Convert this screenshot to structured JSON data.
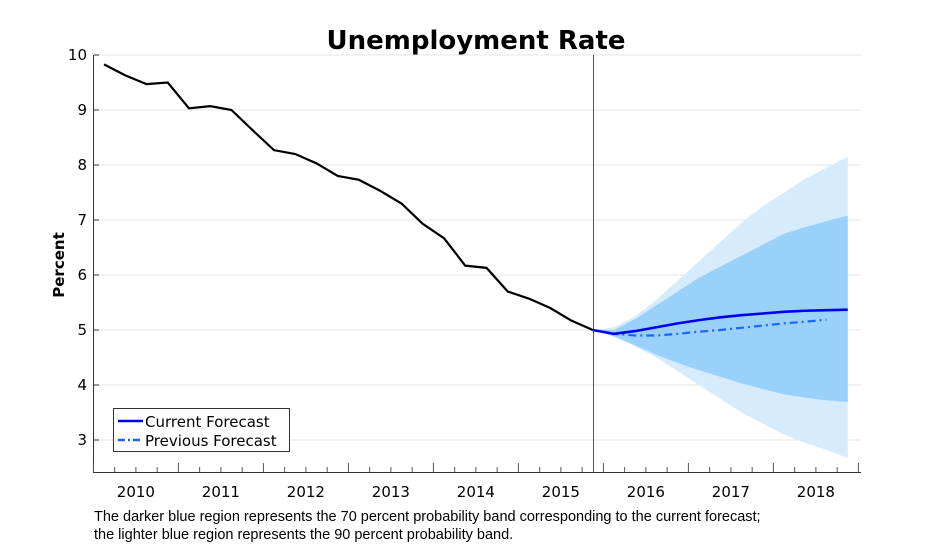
{
  "chart_data": {
    "type": "line",
    "title": "Unemployment Rate",
    "xlabel": "",
    "ylabel": "Percent",
    "ylim": [
      2.4,
      10
    ],
    "yticks": [
      3,
      4,
      5,
      6,
      7,
      8,
      9,
      10
    ],
    "xtick_labels": [
      "2010",
      "2011",
      "2012",
      "2013",
      "2014",
      "2015",
      "2016",
      "2017",
      "2018"
    ],
    "x_frequency": "quarterly",
    "x_start": "2010Q1",
    "grid": "horizontal",
    "legend_position": "bottom-left",
    "forecast_start": "2015Q4",
    "history": [
      9.83,
      9.63,
      9.47,
      9.5,
      9.03,
      9.07,
      9.0,
      8.63,
      8.27,
      8.2,
      8.03,
      7.8,
      7.73,
      7.53,
      7.3,
      6.93,
      6.67,
      6.17,
      6.13,
      5.7,
      5.57,
      5.4,
      5.17,
      5.0
    ],
    "series": [
      {
        "name": "Current Forecast",
        "start": "2015Q4",
        "color": "#0000ee",
        "style": "solid",
        "values": [
          5.0,
          4.93,
          4.98,
          5.05,
          5.12,
          5.18,
          5.23,
          5.27,
          5.3,
          5.33,
          5.35,
          5.36,
          5.37
        ]
      },
      {
        "name": "Previous Forecast",
        "start": "2015Q4",
        "color": "#1a66ff",
        "style": "dash-dot",
        "values": [
          5.0,
          4.93,
          4.9,
          4.9,
          4.93,
          4.97,
          5.0,
          5.04,
          5.08,
          5.12,
          5.15,
          5.19
        ]
      }
    ],
    "bands": [
      {
        "level": "90 percent",
        "color": "#d6ebfc",
        "start": "2015Q4",
        "upper": [
          5.0,
          5.05,
          5.25,
          5.55,
          5.9,
          6.25,
          6.6,
          6.95,
          7.25,
          7.5,
          7.75,
          7.95,
          8.15
        ],
        "lower": [
          5.0,
          4.9,
          4.7,
          4.5,
          4.25,
          4.0,
          3.75,
          3.5,
          3.3,
          3.1,
          2.95,
          2.82,
          2.67
        ]
      },
      {
        "level": "70 percent",
        "color": "#99d1fb",
        "start": "2015Q4",
        "upper": [
          5.0,
          5.0,
          5.2,
          5.45,
          5.7,
          5.95,
          6.15,
          6.35,
          6.55,
          6.75,
          6.87,
          6.98,
          7.08
        ],
        "lower": [
          5.0,
          4.88,
          4.72,
          4.55,
          4.4,
          4.27,
          4.15,
          4.03,
          3.93,
          3.83,
          3.77,
          3.72,
          3.69
        ]
      }
    ]
  },
  "caption": {
    "line1": "The darker blue region represents the 70 percent probability band corresponding to the current forecast;",
    "line2": "the lighter blue region represents the 90 percent probability band."
  }
}
